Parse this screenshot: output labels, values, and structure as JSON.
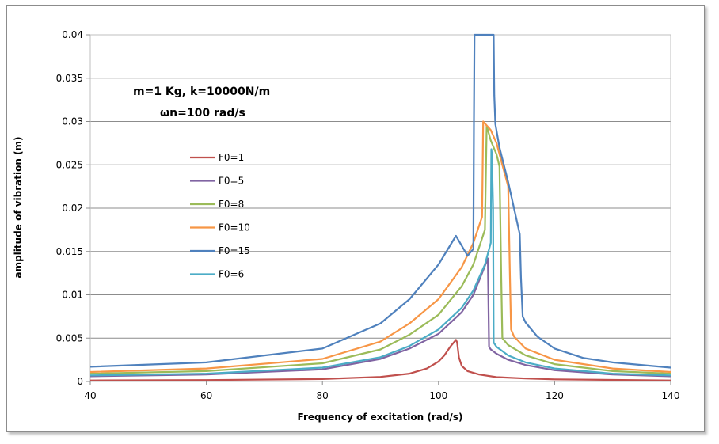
{
  "chart_data": {
    "type": "line",
    "title": "",
    "xlabel": "Frequency of excitation (rad/s)",
    "ylabel": "amplitude of vibration (m)",
    "xlim": [
      40,
      140
    ],
    "ylim": [
      0,
      0.04
    ],
    "xticks": [
      40,
      60,
      80,
      100,
      120,
      140
    ],
    "xtick_labels": [
      "40",
      "60",
      "80",
      "100",
      "120",
      "140"
    ],
    "yticks": [
      0,
      0.005,
      0.01,
      0.015,
      0.02,
      0.025,
      0.03,
      0.035,
      0.04
    ],
    "ytick_labels": [
      "0",
      "0.005",
      "0.01",
      "0.015",
      "0.02",
      "0.025",
      "0.03",
      "0.035",
      "0.04"
    ],
    "grid": true,
    "annotations": [
      "m=1 Kg, k=10000N/m",
      "ωn=100 rad/s"
    ],
    "legend_position": "center-left",
    "series": [
      {
        "name": "F0=1",
        "color": "#C0504D",
        "x": [
          40,
          60,
          80,
          90,
          95,
          98,
          100,
          101,
          102,
          103,
          103.2,
          103.5,
          104,
          105,
          107,
          110,
          115,
          120,
          130,
          140
        ],
        "y": [
          0.00012,
          0.00016,
          0.00028,
          0.00053,
          0.0009,
          0.0015,
          0.0023,
          0.003,
          0.004,
          0.0048,
          0.0045,
          0.0028,
          0.0018,
          0.0012,
          0.0008,
          0.0005,
          0.00035,
          0.00025,
          0.00018,
          0.00012
        ]
      },
      {
        "name": "F0=5",
        "color": "#8064A2",
        "x": [
          40,
          60,
          80,
          90,
          95,
          100,
          104,
          106,
          107.5,
          108.5,
          108.7,
          109,
          110,
          112,
          115,
          120,
          130,
          140
        ],
        "y": [
          0.0006,
          0.0008,
          0.0014,
          0.0026,
          0.0038,
          0.0055,
          0.008,
          0.01,
          0.0125,
          0.0142,
          0.004,
          0.0037,
          0.0032,
          0.0025,
          0.0019,
          0.0013,
          0.0008,
          0.0006
        ]
      },
      {
        "name": "F0=8",
        "color": "#9BBB59",
        "x": [
          40,
          60,
          80,
          90,
          95,
          100,
          104,
          106,
          108,
          108.3,
          109,
          110,
          110.5,
          110.8,
          111,
          112,
          115,
          120,
          130,
          140
        ],
        "y": [
          0.0009,
          0.0012,
          0.0021,
          0.0037,
          0.0054,
          0.0077,
          0.011,
          0.0135,
          0.0175,
          0.0295,
          0.0278,
          0.0262,
          0.0248,
          0.012,
          0.005,
          0.0042,
          0.003,
          0.002,
          0.0012,
          0.0009
        ]
      },
      {
        "name": "F0=10",
        "color": "#F79646",
        "x": [
          40,
          60,
          80,
          90,
          95,
          100,
          104,
          106,
          107.5,
          107.7,
          109,
          110,
          111,
          112,
          112.3,
          112.5,
          113,
          115,
          120,
          130,
          140
        ],
        "y": [
          0.0011,
          0.0015,
          0.0026,
          0.0046,
          0.0067,
          0.0095,
          0.0132,
          0.016,
          0.019,
          0.03,
          0.029,
          0.0275,
          0.025,
          0.0225,
          0.012,
          0.006,
          0.0052,
          0.0038,
          0.0025,
          0.0015,
          0.0011
        ]
      },
      {
        "name": "F0=15",
        "color": "#4F81BD",
        "x": [
          40,
          60,
          80,
          90,
          95,
          100,
          103,
          105,
          106,
          106.1,
          106.2,
          109.5,
          109.6,
          109.8,
          110.5,
          112,
          113,
          114,
          114.2,
          114.5,
          115,
          117,
          120,
          125,
          130,
          140
        ],
        "y": [
          0.0017,
          0.0022,
          0.0038,
          0.0067,
          0.0095,
          0.0135,
          0.0168,
          0.0145,
          0.0153,
          0.03,
          0.04,
          0.04,
          0.033,
          0.0297,
          0.027,
          0.023,
          0.02,
          0.017,
          0.012,
          0.0075,
          0.0068,
          0.0052,
          0.0038,
          0.0027,
          0.0022,
          0.0016
        ]
      },
      {
        "name": "F0=6",
        "color": "#4BACC6",
        "x": [
          40,
          60,
          80,
          90,
          95,
          100,
          104,
          106,
          108,
          109,
          109.1,
          109.2,
          109.4,
          109.5,
          110,
          112,
          115,
          120,
          130,
          140
        ],
        "y": [
          0.0007,
          0.0009,
          0.0016,
          0.0028,
          0.0041,
          0.006,
          0.0085,
          0.0105,
          0.0135,
          0.016,
          0.0268,
          0.0262,
          0.02,
          0.0045,
          0.004,
          0.003,
          0.0022,
          0.0015,
          0.0009,
          0.0007
        ]
      }
    ]
  }
}
